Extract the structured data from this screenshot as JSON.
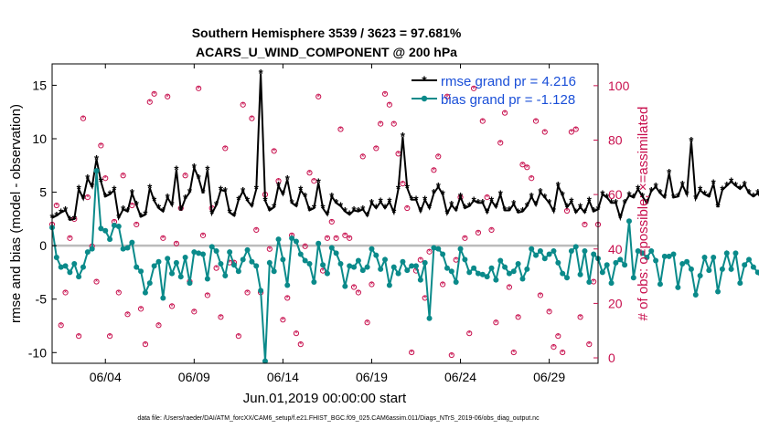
{
  "chart_data": {
    "type": "line",
    "title_line1": "Southern Hemisphere 3539 / 3623 = 97.681%",
    "title_line2": "ACARS_U_WIND_COMPONENT @ 200 hPa",
    "ylabel_left": "rmse and bias (model - observation)",
    "ylabel_right": "# of obs: o=possible; ×=assimilated",
    "xlabel": "Jun.01,2019 00:00:00 start",
    "footer": "data file: /Users/raeder/DAI/ATM_forcXX/CAM6_setup/f.e21.FHIST_BGC.f09_025.CAM6assim.011/Diags_NTrS_2019-06/obs_diag_output.nc",
    "x_range_days": [
      0,
      30.75
    ],
    "ylim_left": [
      -11,
      17
    ],
    "ylim_right": [
      -2,
      108
    ],
    "x_ticks": [
      {
        "day": 3,
        "label": "06/04"
      },
      {
        "day": 8,
        "label": "06/09"
      },
      {
        "day": 13,
        "label": "06/14"
      },
      {
        "day": 18,
        "label": "06/19"
      },
      {
        "day": 23,
        "label": "06/24"
      },
      {
        "day": 28,
        "label": "06/29"
      }
    ],
    "y_ticks_left": [
      {
        "value": 15,
        "label": "15"
      },
      {
        "value": 10,
        "label": "10"
      },
      {
        "value": 5,
        "label": "5"
      },
      {
        "value": 0,
        "label": "0"
      },
      {
        "value": -5,
        "label": "-5"
      },
      {
        "value": -10,
        "label": "-10"
      }
    ],
    "y_ticks_right": [
      {
        "value": 100,
        "label": "100"
      },
      {
        "value": 80,
        "label": "80"
      },
      {
        "value": 60,
        "label": "60"
      },
      {
        "value": 40,
        "label": "40"
      },
      {
        "value": 20,
        "label": "20"
      },
      {
        "value": 0,
        "label": "0"
      }
    ],
    "zero_line": 0,
    "time_step_days": 0.25,
    "series": [
      {
        "name": "rmse",
        "legend": "rmse grand pr = 4.216",
        "color": "#000000",
        "marker": "star",
        "values": [
          2.6,
          2.8,
          3.1,
          3.3,
          2.4,
          2.5,
          5.3,
          4.4,
          6.3,
          5.5,
          8.1,
          6.0,
          4.6,
          4.8,
          5.2,
          2.6,
          3.4,
          3.2,
          4.9,
          3.8,
          2.7,
          2.9,
          5.4,
          4.2,
          3.5,
          3.2,
          4.5,
          3.8,
          7.1,
          3.3,
          4.4,
          5.0,
          7.3,
          6.3,
          4.9,
          7.1,
          3.0,
          3.8,
          5.2,
          5.1,
          3.1,
          2.8,
          4.3,
          5.1,
          4.2,
          3.7,
          5.3,
          16.1,
          4.2,
          3.3,
          3.6,
          5.6,
          4.8,
          6.2,
          4.0,
          3.7,
          5.2,
          4.6,
          3.3,
          3.5,
          5.9,
          3.5,
          2.9,
          4.6,
          4.0,
          3.7,
          3.2,
          2.9,
          3.3,
          3.2,
          3.4,
          2.8,
          4.0,
          3.5,
          4.1,
          3.5,
          4.1,
          3.1,
          5.3,
          10.2,
          5.4,
          4.3,
          4.3,
          3.2,
          4.3,
          3.5,
          4.9,
          5.5,
          4.8,
          3.0,
          3.8,
          3.3,
          4.6,
          3.5,
          3.7,
          4.2,
          4.0,
          4.0,
          3.1,
          4.2,
          3.6,
          4.8,
          3.3,
          3.3,
          3.9,
          3.1,
          3.2,
          3.7,
          4.6,
          3.8,
          5.0,
          4.5,
          4.0,
          3.2,
          5.6,
          4.7,
          3.6,
          4.1,
          3.1,
          3.6,
          3.1,
          4.2,
          3.2,
          3.4,
          4.8,
          4.5,
          4.0,
          4.0,
          2.6,
          4.0,
          4.7,
          4.5,
          5.3,
          4.6,
          4.0,
          5.1,
          5.5,
          4.9,
          4.5,
          6.8,
          4.5,
          4.6,
          5.7,
          4.8,
          9.8,
          4.4,
          5.2,
          4.8,
          4.6,
          5.8,
          3.6,
          5.2,
          5.6,
          6.0,
          5.6,
          5.3,
          5.7,
          4.9,
          4.6,
          4.9,
          4.3,
          6.0,
          3.8,
          3.5,
          5.6,
          4.7,
          4.3,
          5.2,
          4.4,
          6.5,
          4.2,
          3.9
        ]
      },
      {
        "name": "bias",
        "legend": "bias grand pr = -1.128",
        "color": "#0a8a8a",
        "marker": "dot",
        "values": [
          1.7,
          -1.1,
          -2.0,
          -1.9,
          -2.5,
          -1.7,
          -2.9,
          -2.0,
          -0.6,
          -0.3,
          7.0,
          1.6,
          1.4,
          0.6,
          1.9,
          1.8,
          -0.3,
          -0.2,
          0.3,
          -2.0,
          -2.4,
          -4.4,
          -3.5,
          -1.9,
          -1.5,
          -4.9,
          -1.2,
          -2.6,
          -1.6,
          -2.9,
          -1.1,
          -3.5,
          -0.6,
          -0.7,
          -0.8,
          -3.1,
          -0.1,
          -0.5,
          -1.7,
          -2.8,
          -0.6,
          -1.8,
          -2.4,
          -1.3,
          -0.4,
          -1.5,
          -1.9,
          -4.2,
          -10.8,
          -1.6,
          -2.4,
          0.6,
          -1.3,
          -3.7,
          0.7,
          0.4,
          -0.8,
          -1.4,
          -1.7,
          -3.4,
          0.2,
          -1.8,
          -2.6,
          -0.2,
          -0.7,
          -1.7,
          -3.8,
          -1.9,
          -2.0,
          -1.4,
          -2.3,
          -2.0,
          -0.3,
          -0.9,
          -2.2,
          -1.3,
          -3.7,
          -2.0,
          -2.6,
          -1.5,
          -2.3,
          -1.9,
          -1.9,
          -3.2,
          -1.6,
          -6.8,
          -0.2,
          -0.3,
          -0.8,
          -2.1,
          -2.4,
          -3.4,
          -0.3,
          -1.3,
          -2.5,
          -2.1,
          -2.6,
          -2.7,
          -2.9,
          -2.1,
          -3.2,
          -1.4,
          -2.0,
          -2.6,
          -2.4,
          -1.7,
          -3.1,
          -2.2,
          -0.3,
          -0.9,
          -0.5,
          -1.2,
          -0.8,
          -0.5,
          -1.6,
          -2.6,
          -3.0,
          -0.5,
          -0.1,
          -2.7,
          -0.5,
          -3.4,
          -0.8,
          -1.2,
          -2.5,
          -1.8,
          -3.5,
          -1.6,
          -1.3,
          -1.8,
          2.3,
          -3.0,
          -0.5,
          -0.7,
          -1.1,
          -0.5,
          -1.4,
          -3.6,
          -1.0,
          -1.0,
          -0.8,
          -3.9,
          -1.7,
          -1.5,
          -2.2,
          -4.6,
          -2.8,
          -1.1,
          -2.3,
          -1.1,
          -4.3,
          -2.2,
          -0.7,
          -2.2,
          -0.7,
          -3.5,
          -1.8,
          -1.3,
          -2.0,
          -2.5,
          -3.2,
          -2.8,
          -1.8,
          2.5,
          -1.2,
          -1.4,
          -3.5,
          -4.3,
          -4.7,
          -3.6,
          -2.0,
          -2.4,
          -2.3,
          -3.1,
          -3.6,
          -2.2,
          -1.3
        ]
      }
    ]
  }
}
